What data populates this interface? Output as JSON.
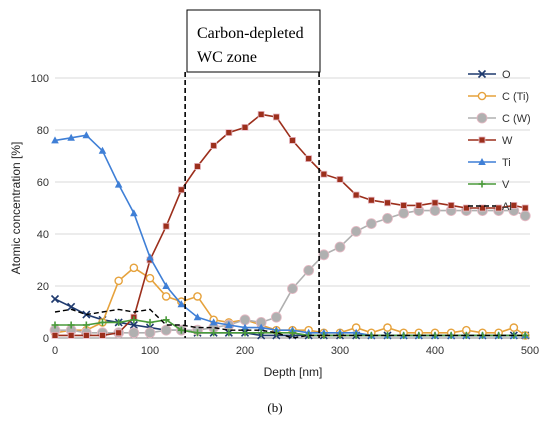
{
  "figure": {
    "panel_label": "(b)"
  },
  "chart_data": {
    "type": "line",
    "xlabel": "Depth [nm]",
    "ylabel": "Atomic concentration [%]",
    "xlim": [
      0,
      500
    ],
    "ylim": [
      0,
      100
    ],
    "xticks": [
      0,
      100,
      200,
      300,
      400,
      500
    ],
    "yticks": [
      0,
      20,
      40,
      60,
      80,
      100
    ],
    "grid": "horizontal",
    "legend_position": "right",
    "annotation": {
      "lines": [
        "Carbon-depleted",
        "WC zone"
      ],
      "x_range": [
        137,
        278
      ]
    },
    "series": [
      {
        "name": "O",
        "color": "#1f3a6e",
        "marker": "x",
        "dash": "solid",
        "x": [
          0,
          17,
          33,
          50,
          67,
          83,
          100,
          117,
          133,
          150,
          167,
          183,
          200,
          217,
          233,
          250,
          267,
          283,
          300,
          317,
          333,
          350,
          367,
          383,
          400,
          417,
          433,
          450,
          467,
          483,
          495
        ],
        "y": [
          15,
          12,
          9,
          7,
          6,
          5,
          4,
          3,
          3,
          2,
          2,
          2,
          2,
          1,
          1,
          1,
          1,
          1,
          1,
          1,
          1,
          1,
          1,
          1,
          1,
          1,
          1,
          1,
          1,
          1,
          1
        ]
      },
      {
        "name": "C (Ti)",
        "color": "#e6a23c",
        "marker": "circle-open",
        "dash": "solid",
        "x": [
          0,
          17,
          33,
          50,
          67,
          83,
          100,
          117,
          133,
          150,
          167,
          183,
          200,
          217,
          233,
          250,
          267,
          283,
          300,
          317,
          333,
          350,
          367,
          383,
          400,
          417,
          433,
          450,
          467,
          483,
          495
        ],
        "y": [
          2,
          3,
          3,
          6,
          22,
          27,
          23,
          16,
          14,
          16,
          7,
          6,
          7,
          5,
          3,
          3,
          3,
          2,
          2,
          4,
          2,
          4,
          2,
          2,
          2,
          2,
          3,
          2,
          2,
          4,
          1
        ]
      },
      {
        "name": "C (W)",
        "color": "#b0b0b0",
        "marker": "circle",
        "dash": "solid",
        "x": [
          0,
          17,
          33,
          50,
          67,
          83,
          100,
          117,
          133,
          150,
          167,
          183,
          200,
          217,
          233,
          250,
          267,
          283,
          300,
          317,
          333,
          350,
          367,
          383,
          400,
          417,
          433,
          450,
          467,
          483,
          495
        ],
        "y": [
          3,
          3,
          2,
          2,
          2,
          2,
          2,
          3,
          3,
          3,
          4,
          5,
          7,
          6,
          8,
          19,
          26,
          32,
          35,
          41,
          44,
          46,
          48,
          49,
          49,
          49,
          49,
          49,
          49,
          49,
          47
        ]
      },
      {
        "name": "W",
        "color": "#9c2f1c",
        "marker": "square",
        "dash": "solid",
        "x": [
          0,
          17,
          33,
          50,
          67,
          83,
          100,
          117,
          133,
          150,
          167,
          183,
          200,
          217,
          233,
          250,
          267,
          283,
          300,
          317,
          333,
          350,
          367,
          383,
          400,
          417,
          433,
          450,
          467,
          483,
          495
        ],
        "y": [
          1,
          1,
          1,
          1,
          2,
          8,
          30,
          43,
          57,
          66,
          74,
          79,
          81,
          86,
          85,
          76,
          69,
          63,
          61,
          55,
          53,
          52,
          51,
          51,
          52,
          51,
          50,
          50,
          50,
          51,
          50
        ]
      },
      {
        "name": "Ti",
        "color": "#3f7fd6",
        "marker": "triangle",
        "dash": "solid",
        "x": [
          0,
          17,
          33,
          50,
          67,
          83,
          100,
          117,
          133,
          150,
          167,
          183,
          200,
          217,
          233,
          250,
          267,
          283,
          300,
          317,
          333,
          350,
          367,
          383,
          400,
          417,
          433,
          450,
          467,
          483,
          495
        ],
        "y": [
          76,
          77,
          78,
          72,
          59,
          48,
          31,
          20,
          13,
          8,
          6,
          5,
          4,
          4,
          3,
          3,
          2,
          2,
          2,
          2,
          1,
          1,
          1,
          1,
          1,
          1,
          1,
          1,
          1,
          1,
          1
        ]
      },
      {
        "name": "V",
        "color": "#4a9a3a",
        "marker": "plus",
        "dash": "solid",
        "x": [
          0,
          17,
          33,
          50,
          67,
          83,
          100,
          117,
          133,
          150,
          167,
          183,
          200,
          217,
          233,
          250,
          267,
          283,
          300,
          317,
          333,
          350,
          367,
          383,
          400,
          417,
          433,
          450,
          467,
          483,
          495
        ],
        "y": [
          5,
          5,
          5,
          6,
          6,
          7,
          6,
          7,
          3,
          2,
          2,
          2,
          2,
          2,
          2,
          2,
          1,
          1,
          1,
          1,
          1,
          1,
          1,
          1,
          1,
          1,
          1,
          1,
          1,
          1,
          1
        ]
      },
      {
        "name": "Al",
        "color": "#000000",
        "marker": "none",
        "dash": "dashed",
        "x": [
          0,
          17,
          33,
          50,
          67,
          83,
          100,
          117,
          133,
          150,
          167,
          183,
          200,
          217,
          233,
          250,
          267,
          283,
          300,
          317,
          333,
          350,
          367,
          383,
          400,
          417,
          433,
          450,
          467,
          483,
          495
        ],
        "y": [
          10,
          11,
          9,
          10,
          11,
          10,
          11,
          5,
          5,
          4,
          4,
          3,
          3,
          3,
          2,
          0,
          1,
          1,
          1,
          1,
          1,
          1,
          1,
          1,
          1,
          1,
          1,
          1,
          1,
          1,
          1
        ]
      }
    ]
  }
}
